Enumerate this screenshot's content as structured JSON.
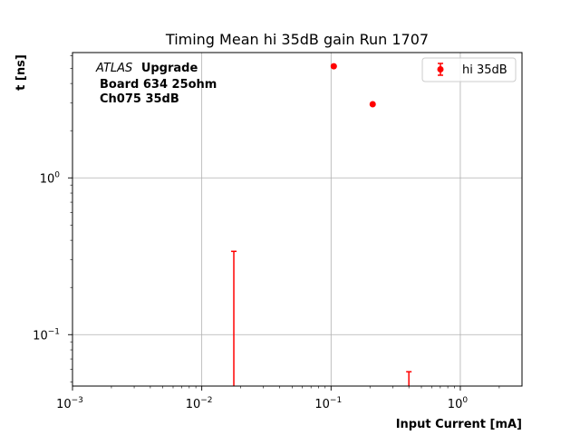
{
  "chart_data": {
    "type": "scatter",
    "title": "Timing Mean hi 35dB gain Run 1707",
    "xlabel": "Input Current [mA]",
    "ylabel": "t [ns]",
    "xscale": "log",
    "yscale": "log",
    "xlim": [
      0.001,
      3.0
    ],
    "ylim": [
      0.047,
      6.3
    ],
    "grid": true,
    "legend_position": "top-right",
    "x_ticks": [
      {
        "base": "10",
        "exp": "−3",
        "value": 0.001
      },
      {
        "base": "10",
        "exp": "−2",
        "value": 0.01
      },
      {
        "base": "10",
        "exp": "−1",
        "value": 0.1
      },
      {
        "base": "10",
        "exp": "0",
        "value": 1
      }
    ],
    "y_ticks": [
      {
        "base": "10",
        "exp": "−1",
        "value": 0.1
      },
      {
        "base": "10",
        "exp": "0",
        "value": 1
      }
    ],
    "annotation": {
      "italic": "ATLAS",
      "bold": "Upgrade",
      "line2": "Board 634 25ohm",
      "line3": "Ch075 35dB"
    },
    "series": [
      {
        "name": "hi 35dB",
        "color": "#ff0000",
        "marker": "circle",
        "points": [
          {
            "x": 0.0177,
            "y": 0.0,
            "err": 0.34
          },
          {
            "x": 0.105,
            "y": 5.15,
            "err": 0.0
          },
          {
            "x": 0.21,
            "y": 2.95,
            "err": 0.0
          },
          {
            "x": 0.4,
            "y": 0.0,
            "err": 0.058
          }
        ]
      }
    ]
  }
}
